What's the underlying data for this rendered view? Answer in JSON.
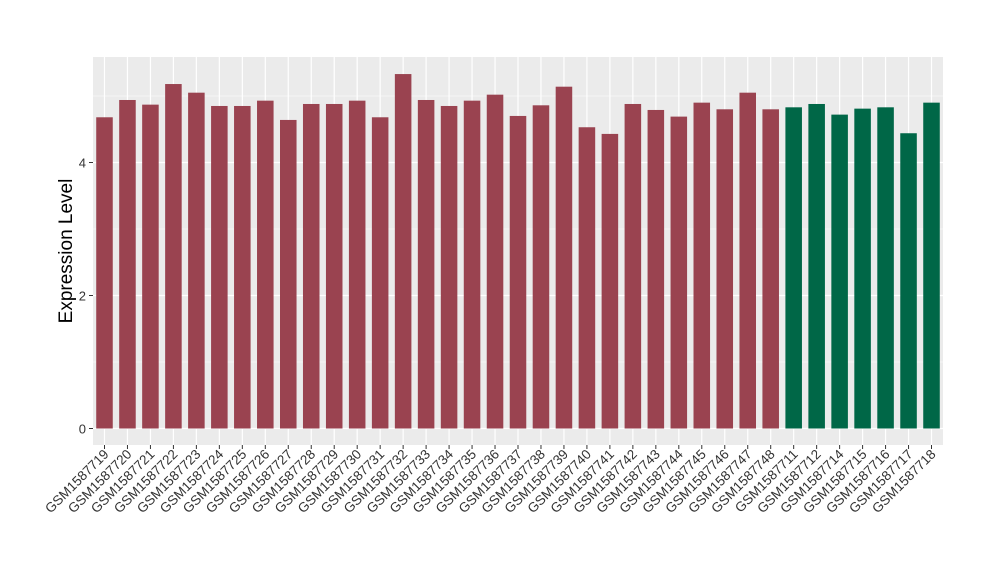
{
  "chart_data": {
    "type": "bar",
    "title": "",
    "xlabel": "",
    "ylabel": "Expression Level",
    "ylim": [
      0,
      5.5
    ],
    "yticks": [
      0,
      2,
      4
    ],
    "grid": true,
    "legend": "none",
    "categories": [
      "GSM1587719",
      "GSM1587720",
      "GSM1587721",
      "GSM1587722",
      "GSM1587723",
      "GSM1587724",
      "GSM1587725",
      "GSM1587726",
      "GSM1587727",
      "GSM1587728",
      "GSM1587729",
      "GSM1587730",
      "GSM1587731",
      "GSM1587732",
      "GSM1587733",
      "GSM1587734",
      "GSM1587735",
      "GSM1587736",
      "GSM1587737",
      "GSM1587738",
      "GSM1587739",
      "GSM1587740",
      "GSM1587741",
      "GSM1587742",
      "GSM1587743",
      "GSM1587744",
      "GSM1587745",
      "GSM1587746",
      "GSM1587747",
      "GSM1587748",
      "GSM1587711",
      "GSM1587712",
      "GSM1587714",
      "GSM1587715",
      "GSM1587716",
      "GSM1587717",
      "GSM1587718"
    ],
    "values": [
      4.68,
      4.94,
      4.87,
      5.18,
      5.05,
      4.85,
      4.85,
      4.93,
      4.64,
      4.88,
      4.88,
      4.93,
      4.68,
      5.33,
      4.94,
      4.85,
      4.93,
      5.02,
      4.7,
      4.86,
      5.14,
      4.53,
      4.43,
      4.88,
      4.79,
      4.69,
      4.9,
      4.8,
      5.05,
      4.8,
      4.83,
      4.88,
      4.72,
      4.81,
      4.83,
      4.44,
      4.9
    ],
    "groups": [
      0,
      0,
      0,
      0,
      0,
      0,
      0,
      0,
      0,
      0,
      0,
      0,
      0,
      0,
      0,
      0,
      0,
      0,
      0,
      0,
      0,
      0,
      0,
      0,
      0,
      0,
      0,
      0,
      0,
      0,
      1,
      1,
      1,
      1,
      1,
      1,
      1
    ],
    "colors": {
      "group0": "#9A4350",
      "group1": "#006747",
      "panel": "#EBEBEB",
      "grid": "#FFFFFF",
      "axis_text": "#333333",
      "title_text": "#000000"
    }
  }
}
